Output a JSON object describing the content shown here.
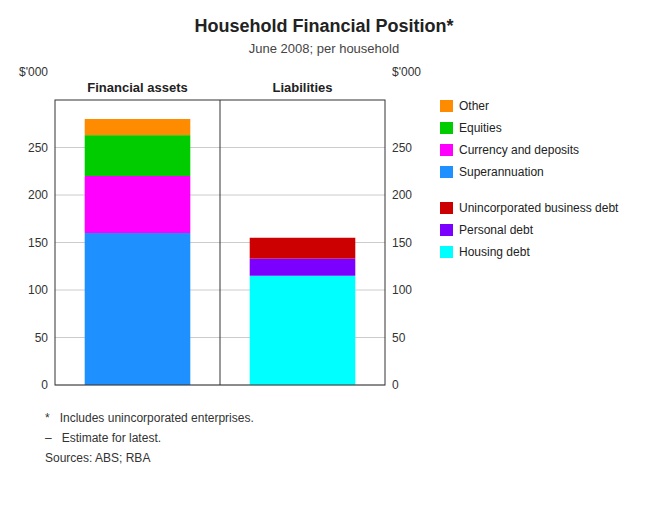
{
  "chart_data": {
    "type": "bar",
    "stacked": true,
    "title": "Household Financial Position*",
    "subtitle": "June 2008; per household",
    "y_label": "$'000",
    "y2_label": "$'000",
    "categories": [
      "Financial assets",
      "Liabilities"
    ],
    "series": [
      {
        "name": "Superannuation",
        "color": "#1E90FF",
        "values": [
          160,
          null
        ]
      },
      {
        "name": "Currency and deposits",
        "color": "#FF00FF",
        "values": [
          60,
          null
        ]
      },
      {
        "name": "Equities",
        "color": "#00CC00",
        "values": [
          43,
          null
        ]
      },
      {
        "name": "Other",
        "color": "#FF8C00",
        "values": [
          17,
          null
        ]
      },
      {
        "name": "Housing debt",
        "color": "#00FFFF",
        "values": [
          null,
          115
        ]
      },
      {
        "name": "Personal debt",
        "color": "#7B00FF",
        "values": [
          null,
          18
        ]
      },
      {
        "name": "Unincorporated business debt",
        "color": "#CC0000",
        "values": [
          null,
          22
        ]
      }
    ],
    "ylim": [
      0,
      300
    ],
    "yticks": [
      0,
      50,
      100,
      150,
      200,
      250
    ],
    "y2lim": [
      0,
      300
    ],
    "y2ticks": [
      0,
      50,
      100,
      150,
      200,
      250
    ],
    "grid": true,
    "legend": "right",
    "footnotes": [
      "*   Includes unincorporated enterprises.",
      "–   Estimate for latest.",
      "Sources: ABS; RBA"
    ]
  }
}
